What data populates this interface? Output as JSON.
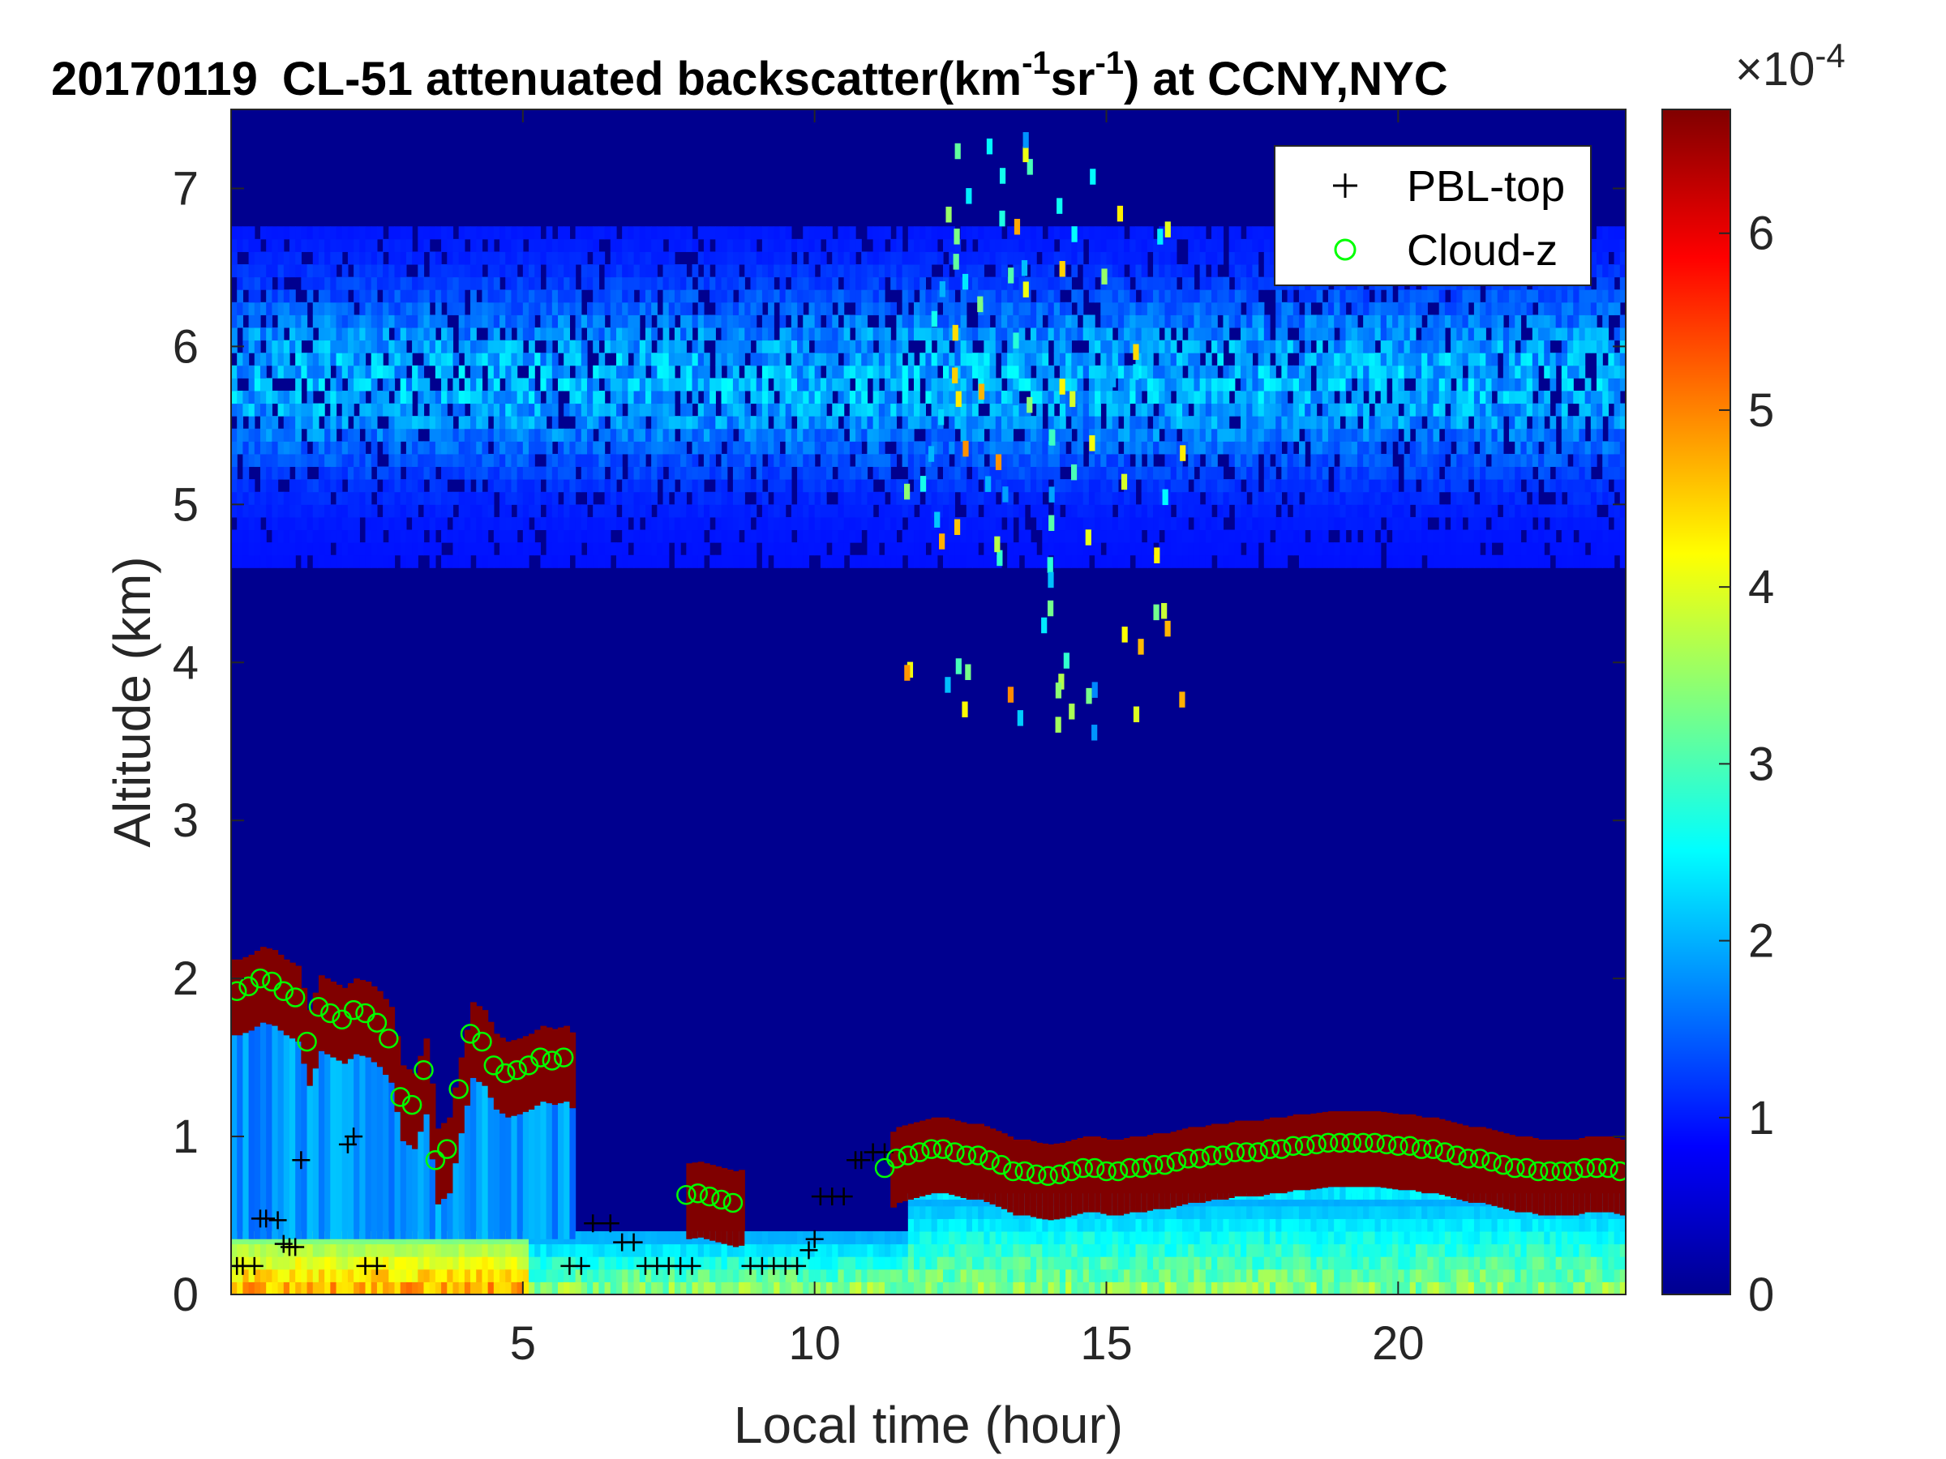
{
  "chart_data": {
    "type": "heatmap",
    "title": {
      "date": "20170119",
      "lead": "CL-51 attenuated backscatter(km",
      "sup1": "-1",
      "mid": "sr",
      "sup2": "-1",
      "tail": ") at CCNY,NYC"
    },
    "xlabel": "Local time (hour)",
    "ylabel": "Altitude (km)",
    "xlim": [
      0,
      23.9
    ],
    "ylim": [
      0,
      7.5
    ],
    "xticks": [
      5,
      10,
      15,
      20
    ],
    "yticks": [
      0,
      1,
      2,
      3,
      4,
      5,
      6,
      7
    ],
    "colormap": "jet",
    "colorbar": {
      "clim": [
        0,
        6.7
      ],
      "ticks": [
        0,
        1,
        2,
        3,
        4,
        5,
        6
      ],
      "exponent_base": "×10",
      "exponent_power": "-4"
    },
    "legend": {
      "position": "top-right",
      "items": [
        {
          "label": "PBL-top",
          "marker": "+",
          "color": "#000000"
        },
        {
          "label": "Cloud-z",
          "marker": "o",
          "color": "#00ff00"
        }
      ]
    },
    "series": [
      {
        "name": "PBL-top",
        "marker": "+",
        "x": [
          0.1,
          0.2,
          0.4,
          0.5,
          0.6,
          0.8,
          0.9,
          1.0,
          1.1,
          1.2,
          2.0,
          2.1,
          2.3,
          2.5,
          5.8,
          6.0,
          6.2,
          6.5,
          6.7,
          6.9,
          7.1,
          7.3,
          7.5,
          7.7,
          7.9,
          8.9,
          9.1,
          9.3,
          9.5,
          9.7,
          9.9,
          10.0,
          10.1,
          10.3,
          10.5,
          10.7,
          10.8,
          11.0,
          11.2
        ],
        "y": [
          0.18,
          0.18,
          0.18,
          0.48,
          0.48,
          0.47,
          0.32,
          0.3,
          0.3,
          0.85,
          0.95,
          1.0,
          0.18,
          0.18,
          0.18,
          0.18,
          0.45,
          0.45,
          0.33,
          0.33,
          0.18,
          0.18,
          0.18,
          0.18,
          0.18,
          0.18,
          0.18,
          0.18,
          0.18,
          0.18,
          0.28,
          0.35,
          0.62,
          0.62,
          0.62,
          0.85,
          0.85,
          0.9,
          0.9
        ]
      },
      {
        "name": "Cloud-z",
        "marker": "o",
        "x": [
          0.1,
          0.3,
          0.5,
          0.7,
          0.9,
          1.1,
          1.3,
          1.5,
          1.7,
          1.9,
          2.1,
          2.3,
          2.5,
          2.7,
          2.9,
          3.1,
          3.3,
          3.5,
          3.7,
          3.9,
          4.1,
          4.3,
          4.5,
          4.7,
          4.9,
          5.1,
          5.3,
          5.5,
          5.7,
          7.8,
          8.0,
          8.2,
          8.4,
          8.6,
          11.2,
          11.4,
          11.6,
          11.8,
          12.0,
          12.2,
          12.4,
          12.6,
          12.8,
          13.0,
          13.2,
          13.4,
          13.6,
          13.8,
          14.0,
          14.2,
          14.4,
          14.6,
          14.8,
          15.0,
          15.2,
          15.4,
          15.6,
          15.8,
          16.0,
          16.2,
          16.4,
          16.6,
          16.8,
          17.0,
          17.2,
          17.4,
          17.6,
          17.8,
          18.0,
          18.2,
          18.4,
          18.6,
          18.8,
          19.0,
          19.2,
          19.4,
          19.6,
          19.8,
          20.0,
          20.2,
          20.4,
          20.6,
          20.8,
          21.0,
          21.2,
          21.4,
          21.6,
          21.8,
          22.0,
          22.2,
          22.4,
          22.6,
          22.8,
          23.0,
          23.2,
          23.4,
          23.6,
          23.8
        ],
        "y": [
          1.92,
          1.95,
          2.0,
          1.98,
          1.92,
          1.88,
          1.6,
          1.82,
          1.78,
          1.74,
          1.8,
          1.78,
          1.72,
          1.62,
          1.25,
          1.2,
          1.42,
          0.85,
          0.92,
          1.3,
          1.65,
          1.6,
          1.45,
          1.4,
          1.42,
          1.45,
          1.5,
          1.48,
          1.5,
          0.63,
          0.64,
          0.62,
          0.6,
          0.58,
          0.8,
          0.86,
          0.88,
          0.9,
          0.92,
          0.92,
          0.9,
          0.88,
          0.88,
          0.85,
          0.82,
          0.78,
          0.78,
          0.76,
          0.75,
          0.76,
          0.78,
          0.8,
          0.8,
          0.78,
          0.78,
          0.8,
          0.8,
          0.82,
          0.82,
          0.84,
          0.86,
          0.86,
          0.88,
          0.88,
          0.9,
          0.9,
          0.9,
          0.92,
          0.92,
          0.94,
          0.94,
          0.95,
          0.96,
          0.96,
          0.96,
          0.96,
          0.96,
          0.95,
          0.94,
          0.94,
          0.92,
          0.92,
          0.9,
          0.88,
          0.86,
          0.86,
          0.84,
          0.82,
          0.8,
          0.8,
          0.78,
          0.78,
          0.78,
          0.78,
          0.8,
          0.8,
          0.8,
          0.78
        ]
      }
    ]
  }
}
